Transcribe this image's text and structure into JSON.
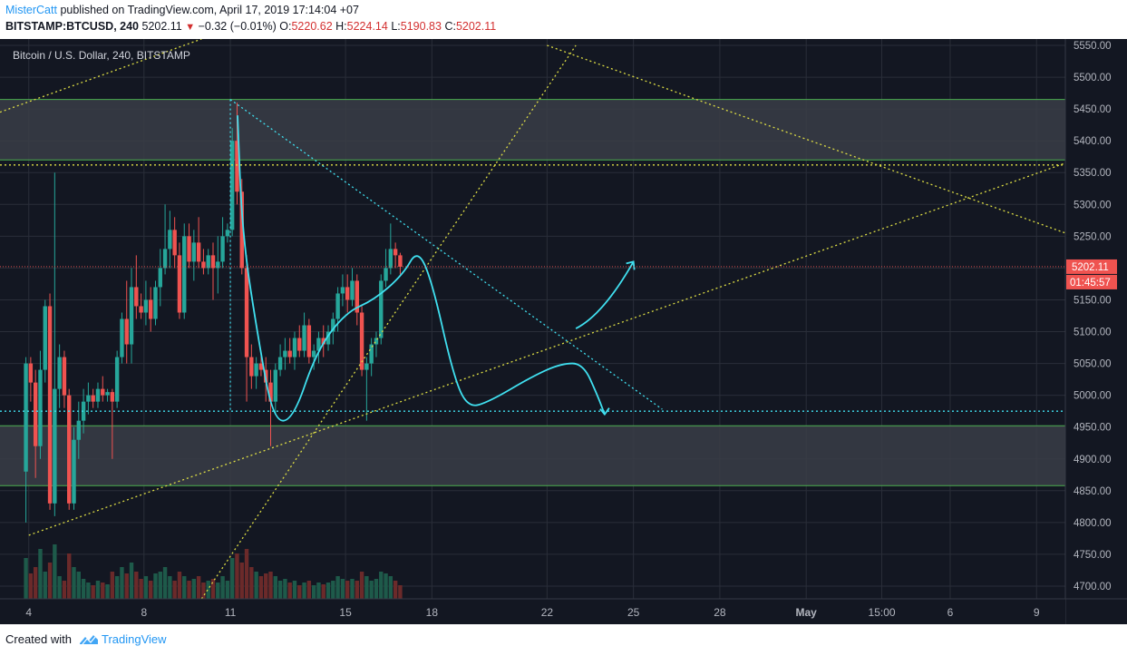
{
  "header": {
    "author": "MisterCatt",
    "published_text": "published on TradingView.com, April 17, 2019 17:14:04 +07",
    "symbol": "BITSTAMP:BTCUSD, 240",
    "price": "5202.11",
    "change_icon": "triangle-down-icon",
    "change": "−0.32 (−0.01%)",
    "open_label": "O:",
    "open": "5220.62",
    "high_label": "H:",
    "high": "5224.14",
    "low_label": "L:",
    "low": "5190.83",
    "close_label": "C:",
    "close": "5202.11"
  },
  "footer": {
    "created_with": "Created with",
    "brand": "TradingView",
    "brand_icon": "tradingview-logo-icon"
  },
  "colors": {
    "background": "#131722",
    "up": "#26a69a",
    "down": "#ef5350",
    "cyan_drawing": "#40e0f0",
    "yellow_drawing": "#dddd44",
    "zone_fill": "#3a3d47",
    "zone_border": "#4caf50",
    "price_label_bg": "#ef5350"
  },
  "chart_data": {
    "type": "candlestick",
    "title": "Bitcoin / U.S. Dollar, 240, BITSTAMP",
    "ylim": [
      4680,
      5560
    ],
    "y_ticks": [
      "5550.00",
      "5500.00",
      "5450.00",
      "5400.00",
      "5350.00",
      "5300.00",
      "5250.00",
      "5200.00",
      "5150.00",
      "5100.00",
      "5050.00",
      "5000.00",
      "4950.00",
      "4900.00",
      "4850.00",
      "4800.00",
      "4750.00",
      "4700.00"
    ],
    "x_ticks": [
      "4",
      "8",
      "11",
      "15",
      "18",
      "22",
      "25",
      "28",
      "May",
      "15:00",
      "6",
      "9"
    ],
    "x_range": [
      "2019-04-03",
      "2019-05-10"
    ],
    "last_price_label": "5202.11",
    "countdown_label": "01:45:57",
    "candles": [
      [
        4880,
        5060,
        4800,
        5050
      ],
      [
        5050,
        5060,
        4990,
        5020
      ],
      [
        5020,
        5040,
        4870,
        4920
      ],
      [
        4920,
        5070,
        4900,
        5040
      ],
      [
        5040,
        5150,
        5020,
        5140
      ],
      [
        5140,
        5160,
        4820,
        4830
      ],
      [
        4830,
        5350,
        4810,
        5010
      ],
      [
        5010,
        5080,
        4980,
        5060
      ],
      [
        5060,
        5070,
        4980,
        5000
      ],
      [
        5000,
        5010,
        4820,
        4830
      ],
      [
        4830,
        4950,
        4820,
        4930
      ],
      [
        4930,
        4990,
        4900,
        4960
      ],
      [
        4960,
        5010,
        4940,
        4990
      ],
      [
        4990,
        5020,
        4970,
        5000
      ],
      [
        5000,
        5010,
        4980,
        4990
      ],
      [
        4990,
        5020,
        4980,
        5010
      ],
      [
        5010,
        5030,
        4990,
        5000
      ],
      [
        5000,
        5010,
        4990,
        5005
      ],
      [
        5005,
        5010,
        4900,
        4990
      ],
      [
        4990,
        5070,
        4980,
        5060
      ],
      [
        5060,
        5130,
        5050,
        5120
      ],
      [
        5120,
        5180,
        5050,
        5080
      ],
      [
        5080,
        5200,
        5050,
        5170
      ],
      [
        5170,
        5220,
        5120,
        5140
      ],
      [
        5140,
        5160,
        5120,
        5130
      ],
      [
        5130,
        5180,
        5110,
        5150
      ],
      [
        5150,
        5170,
        5100,
        5120
      ],
      [
        5120,
        5180,
        5110,
        5170
      ],
      [
        5170,
        5230,
        5140,
        5200
      ],
      [
        5200,
        5300,
        5190,
        5230
      ],
      [
        5230,
        5290,
        5200,
        5260
      ],
      [
        5260,
        5280,
        5200,
        5220
      ],
      [
        5220,
        5240,
        5120,
        5130
      ],
      [
        5130,
        5270,
        5120,
        5250
      ],
      [
        5250,
        5270,
        5200,
        5210
      ],
      [
        5210,
        5260,
        5180,
        5240
      ],
      [
        5240,
        5280,
        5200,
        5210
      ],
      [
        5210,
        5230,
        5190,
        5200
      ],
      [
        5200,
        5230,
        5190,
        5220
      ],
      [
        5220,
        5240,
        5150,
        5200
      ],
      [
        5200,
        5250,
        5160,
        5210
      ],
      [
        5210,
        5280,
        5200,
        5250
      ],
      [
        5250,
        5270,
        5240,
        5260
      ],
      [
        5260,
        5420,
        5250,
        5400
      ],
      [
        5400,
        5460,
        5300,
        5320
      ],
      [
        5320,
        5340,
        5190,
        5200
      ],
      [
        5200,
        5220,
        4990,
        5060
      ],
      [
        5060,
        5080,
        5010,
        5030
      ],
      [
        5030,
        5060,
        5010,
        5050
      ],
      [
        5050,
        5070,
        5030,
        5040
      ],
      [
        5040,
        5060,
        4990,
        5020
      ],
      [
        5020,
        5040,
        4920,
        4990
      ],
      [
        4990,
        5050,
        4970,
        5040
      ],
      [
        5040,
        5080,
        5030,
        5060
      ],
      [
        5060,
        5090,
        5040,
        5070
      ],
      [
        5070,
        5090,
        5050,
        5060
      ],
      [
        5060,
        5100,
        5040,
        5090
      ],
      [
        5090,
        5110,
        5060,
        5070
      ],
      [
        5070,
        5130,
        5060,
        5110
      ],
      [
        5110,
        5120,
        5050,
        5060
      ],
      [
        5060,
        5080,
        5040,
        5070
      ],
      [
        5070,
        5100,
        5050,
        5090
      ],
      [
        5090,
        5110,
        5060,
        5080
      ],
      [
        5080,
        5110,
        5070,
        5100
      ],
      [
        5100,
        5130,
        5080,
        5120
      ],
      [
        5120,
        5170,
        5100,
        5160
      ],
      [
        5160,
        5190,
        5140,
        5170
      ],
      [
        5170,
        5190,
        5130,
        5150
      ],
      [
        5150,
        5200,
        5140,
        5180
      ],
      [
        5180,
        5190,
        5110,
        5130
      ],
      [
        5130,
        5140,
        5030,
        5040
      ],
      [
        5040,
        5060,
        4960,
        5050
      ],
      [
        5050,
        5090,
        5030,
        5080
      ],
      [
        5080,
        5100,
        5060,
        5090
      ],
      [
        5090,
        5190,
        5080,
        5180
      ],
      [
        5180,
        5230,
        5170,
        5200
      ],
      [
        5200,
        5270,
        5190,
        5230
      ],
      [
        5230,
        5240,
        5200,
        5220
      ],
      [
        5220,
        5224,
        5190,
        5202
      ]
    ],
    "volume": [
      45,
      28,
      35,
      55,
      30,
      40,
      60,
      25,
      20,
      50,
      35,
      30,
      22,
      18,
      15,
      20,
      18,
      16,
      30,
      25,
      35,
      28,
      40,
      30,
      22,
      25,
      20,
      28,
      30,
      35,
      25,
      20,
      30,
      25,
      20,
      22,
      25,
      18,
      20,
      22,
      18,
      25,
      20,
      45,
      50,
      40,
      55,
      35,
      30,
      25,
      28,
      30,
      25,
      20,
      22,
      18,
      20,
      15,
      18,
      20,
      15,
      18,
      16,
      18,
      20,
      25,
      22,
      20,
      22,
      20,
      30,
      25,
      20,
      22,
      30,
      28,
      25,
      20,
      15
    ],
    "horizontal_zones": [
      {
        "from": 5370,
        "to": 5465
      },
      {
        "from": 4858,
        "to": 4952
      }
    ],
    "horizontal_levels": [
      {
        "y": 5362,
        "color": "yellow",
        "style": "dotted"
      },
      {
        "y": 4975,
        "color": "cyan",
        "style": "dotted"
      }
    ],
    "trendlines": [
      {
        "from": [
          "2019-04-04",
          4780
        ],
        "to": [
          "2019-05-10",
          5365
        ],
        "color": "yellow",
        "style": "dotted"
      },
      {
        "from": [
          "2019-04-10",
          4680
        ],
        "to": [
          "2019-04-23",
          5550
        ],
        "color": "yellow",
        "style": "dotted"
      },
      {
        "from": [
          "2019-04-22",
          5550
        ],
        "to": [
          "2019-05-10",
          5255
        ],
        "color": "yellow",
        "style": "dotted"
      },
      {
        "from": [
          "2019-04-11",
          5465
        ],
        "to": [
          "2019-04-26",
          4978
        ],
        "color": "cyan",
        "style": "dotted"
      },
      {
        "from": [
          "2019-04-03",
          5445
        ],
        "to": [
          "2019-04-10",
          5560
        ],
        "color": "yellow",
        "style": "dotted"
      }
    ],
    "projection_up": [
      [
        5105,
        "2019-04-23"
      ],
      [
        5210,
        "2019-04-25"
      ]
    ],
    "projection_down_end": [
      4970,
      "2019-04-24"
    ]
  }
}
